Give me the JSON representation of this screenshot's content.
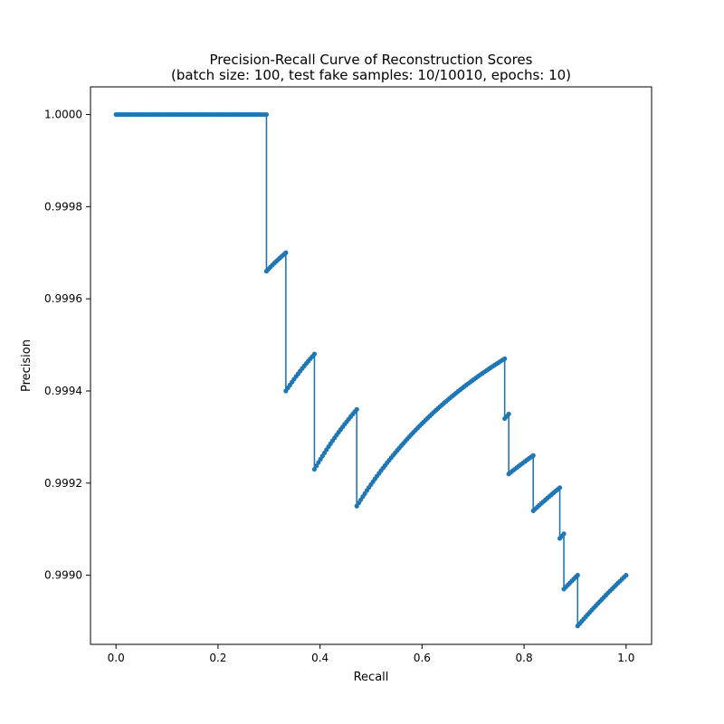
{
  "chart_data": {
    "type": "line",
    "title": "Precision-Recall Curve of Reconstruction Scores",
    "subtitle": "(batch size: 100, test fake samples: 10/10010, epochs: 10)",
    "xlabel": "Recall",
    "ylabel": "Precision",
    "xlim": [
      -0.05,
      1.05
    ],
    "ylim": [
      0.99885,
      1.00006
    ],
    "x_ticks": [
      0.0,
      0.2,
      0.4,
      0.6,
      0.8,
      1.0
    ],
    "x_tick_labels": [
      "0.0",
      "0.2",
      "0.4",
      "0.6",
      "0.8",
      "1.0"
    ],
    "y_ticks": [
      0.999,
      0.9992,
      0.9994,
      0.9996,
      0.9998,
      1.0
    ],
    "y_tick_labels": [
      "0.9990",
      "0.9992",
      "0.9994",
      "0.9996",
      "0.9998",
      "1.0000"
    ],
    "grid": false,
    "legend": "none",
    "colors": {
      "series": "#1f77b4",
      "axes": "#000000",
      "background": "#ffffff"
    },
    "series": [
      {
        "segments": [
          {
            "x": [
              0.0,
              0.295
            ],
            "y": [
              1.0,
              1.0
            ]
          },
          {
            "x": [
              0.295,
              0.333
            ],
            "y": [
              0.99966,
              0.9997
            ]
          },
          {
            "x": [
              0.333,
              0.389
            ],
            "y": [
              0.9994,
              0.99948
            ]
          },
          {
            "x": [
              0.389,
              0.472
            ],
            "y": [
              0.99923,
              0.99936
            ]
          },
          {
            "x": [
              0.472,
              0.762
            ],
            "y": [
              0.99915,
              0.99947
            ]
          },
          {
            "x": [
              0.762,
              0.77
            ],
            "y": [
              0.99934,
              0.99935
            ]
          },
          {
            "x": [
              0.77,
              0.818
            ],
            "y": [
              0.99922,
              0.99926
            ]
          },
          {
            "x": [
              0.818,
              0.87
            ],
            "y": [
              0.99914,
              0.99919
            ]
          },
          {
            "x": [
              0.87,
              0.878
            ],
            "y": [
              0.99908,
              0.99909
            ]
          },
          {
            "x": [
              0.878,
              0.905
            ],
            "y": [
              0.99897,
              0.999
            ]
          },
          {
            "x": [
              0.905,
              1.0
            ],
            "y": [
              0.99889,
              0.999
            ]
          }
        ]
      }
    ]
  }
}
